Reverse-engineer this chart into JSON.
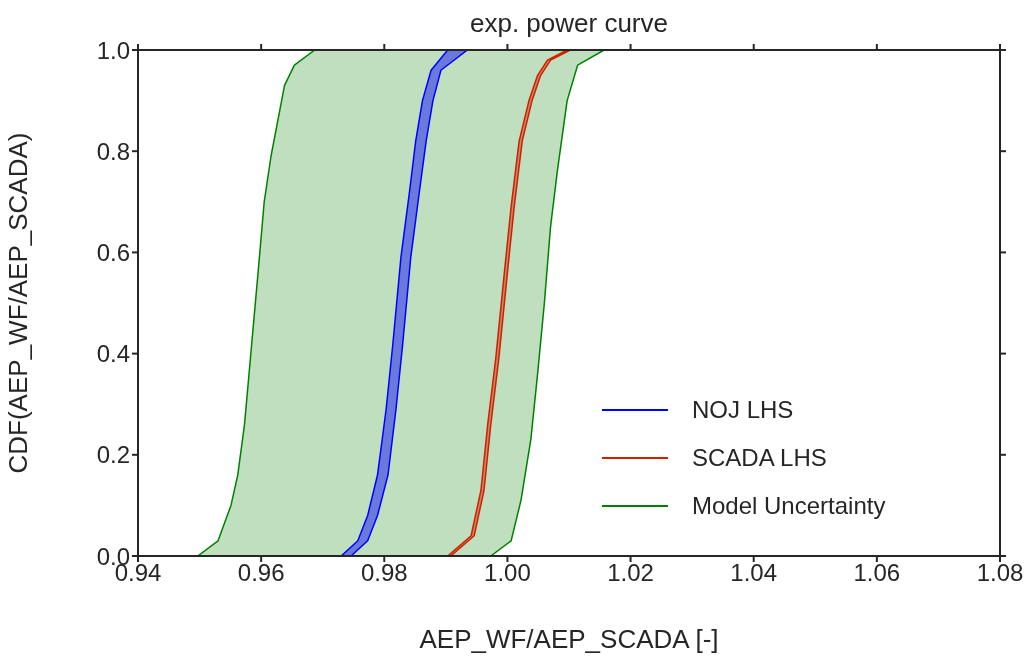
{
  "chart_data": {
    "type": "area",
    "title": "exp. power curve",
    "xlabel": "AEP_WF/AEP_SCADA [-]",
    "ylabel": "CDF(AEP_WF/AEP_SCADA)",
    "xlim": [
      0.94,
      1.08
    ],
    "xticks": [
      0.94,
      0.96,
      0.98,
      {
        "value": 1,
        "label": "1.00"
      },
      1.02,
      1.04,
      1.06,
      1.08
    ],
    "ylim": [
      0,
      1
    ],
    "yticks": [
      {
        "value": 0,
        "label": "0.0"
      },
      0.2,
      0.4,
      0.6,
      0.8,
      {
        "value": 1,
        "label": "1.0"
      }
    ],
    "grid": false,
    "legend": "bottom right",
    "series": [
      {
        "name": "NOJ LHS",
        "color": "#0000ff",
        "x": [
          0.968,
          0.973,
          0.9757,
          0.9773,
          0.9789,
          0.9803,
          0.9814,
          0.9827,
          0.9841,
          0.9851,
          0.9862,
          0.9876,
          0.9903,
          0.9935,
          0.9892,
          0.9879,
          0.9868,
          0.9857,
          0.9843,
          0.983,
          0.9819,
          0.9806,
          0.9789,
          0.9773,
          0.9746
        ],
        "values": [
          0,
          0,
          0.03,
          0.08,
          0.16,
          0.29,
          0.42,
          0.59,
          0.72,
          0.82,
          0.9,
          0.96,
          1,
          1,
          0.96,
          0.9,
          0.82,
          0.72,
          0.59,
          0.42,
          0.29,
          0.16,
          0.08,
          0.03,
          0
        ]
      },
      {
        "name": "SCADA LHS",
        "color": "#d02000",
        "x": [
          0.9843,
          0.9903,
          0.9941,
          0.9957,
          0.9968,
          0.9981,
          0.9995,
          1.0006,
          1.0019,
          1.0035,
          1.0049,
          1.0065,
          1.0097,
          1.0102,
          1.007,
          1.0054,
          1.004,
          1.0024,
          1.0011,
          1,
          0.9986,
          0.9973,
          0.9962,
          0.9946,
          0.9908
        ],
        "values": [
          0,
          0,
          0.04,
          0.13,
          0.26,
          0.39,
          0.56,
          0.69,
          0.82,
          0.9,
          0.95,
          0.98,
          1,
          1,
          0.98,
          0.95,
          0.9,
          0.82,
          0.69,
          0.56,
          0.39,
          0.26,
          0.13,
          0.04,
          0
        ]
      },
      {
        "name": "Model Uncertainty",
        "color": "#008000",
        "x": [
          0.941,
          0.9497,
          0.953,
          0.9551,
          0.9562,
          0.9573,
          0.9584,
          0.9595,
          0.9605,
          0.9616,
          0.9627,
          0.9638,
          0.9654,
          0.9687,
          1.0157,
          1.0114,
          1.0097,
          1.0081,
          1.007,
          1.006,
          1.0049,
          1.0038,
          1.0022,
          1.0006,
          0.9973
        ],
        "values": [
          0,
          0,
          0.03,
          0.1,
          0.16,
          0.26,
          0.41,
          0.56,
          0.7,
          0.79,
          0.86,
          0.93,
          0.97,
          1,
          1,
          0.97,
          0.9,
          0.76,
          0.65,
          0.5,
          0.36,
          0.23,
          0.11,
          0.03,
          0
        ]
      }
    ]
  }
}
